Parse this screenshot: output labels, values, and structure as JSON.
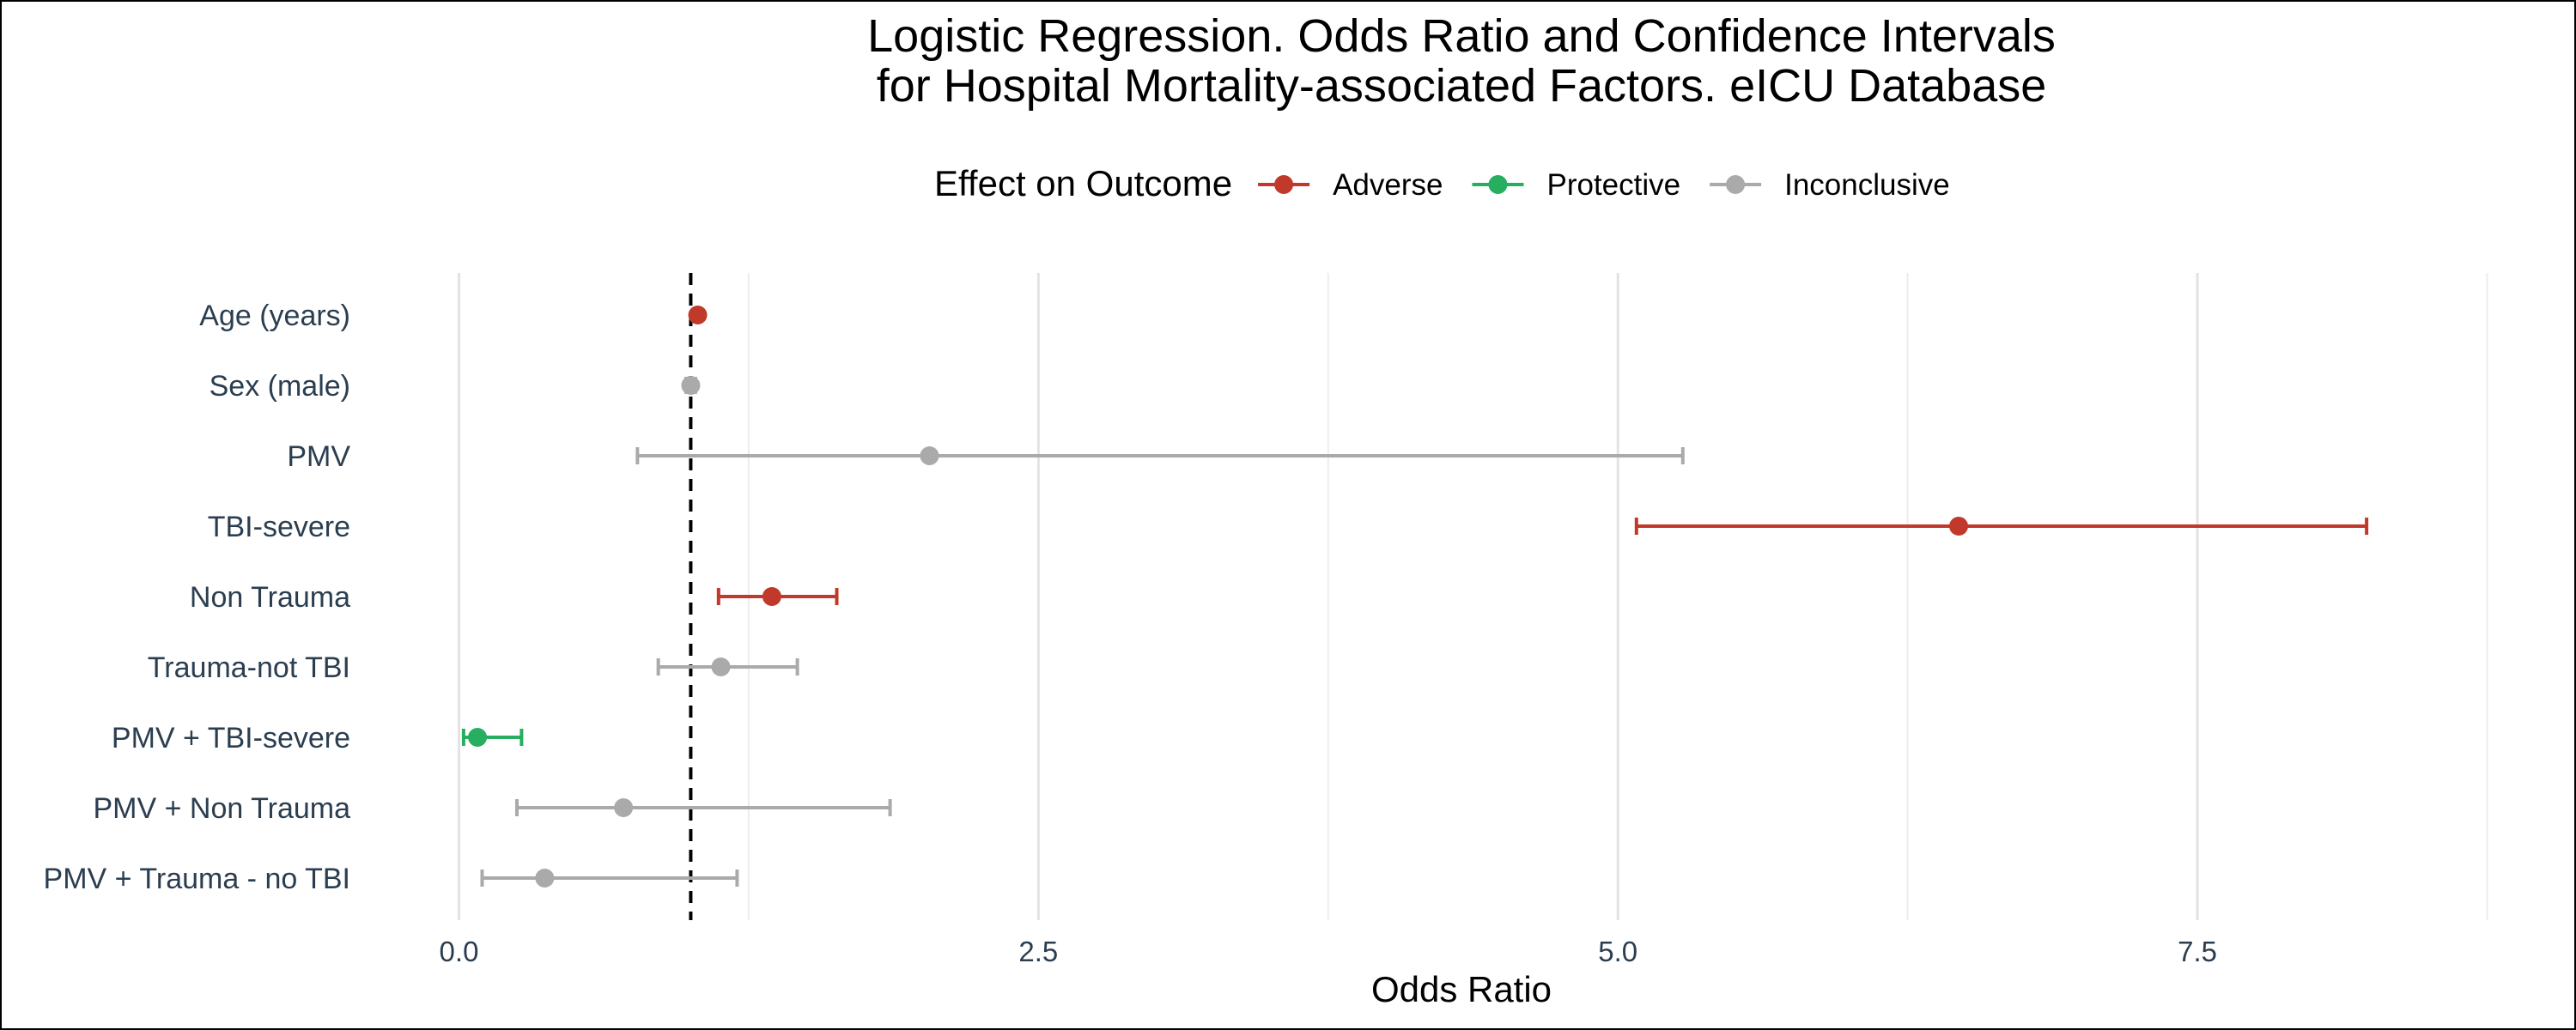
{
  "chart_data": {
    "type": "scatter",
    "title_lines": [
      "Logistic Regression. Odds Ratio and Confidence Intervals",
      "for Hospital Mortality-associated Factors. eICU Database"
    ],
    "xlabel": "Odds Ratio",
    "ylabel": "",
    "xlim": [
      -0.25,
      8.9
    ],
    "x_ticks": [
      0.0,
      2.5,
      5.0,
      7.5
    ],
    "x_tick_labels": [
      "0.0",
      "2.5",
      "5.0",
      "7.5"
    ],
    "minor_gridlines_x": [
      1.25,
      3.75,
      6.25,
      8.75
    ],
    "reference_line": 1.0,
    "grid": true,
    "legend": {
      "position": "top",
      "title": "Effect on Outcome",
      "entries": [
        {
          "name": "Adverse",
          "color": "#c0392b"
        },
        {
          "name": "Protective",
          "color": "#27ae60"
        },
        {
          "name": "Inconclusive",
          "color": "#aaaaaa"
        }
      ]
    },
    "points": [
      {
        "label": "Age (years)",
        "estimate": 1.03,
        "lower": 1.02,
        "upper": 1.04,
        "effect": "Adverse"
      },
      {
        "label": "Sex (male)",
        "estimate": 1.0,
        "lower": 0.98,
        "upper": 1.02,
        "effect": "Inconclusive"
      },
      {
        "label": "PMV",
        "estimate": 2.03,
        "lower": 0.77,
        "upper": 5.28,
        "effect": "Inconclusive"
      },
      {
        "label": "TBI-severe",
        "estimate": 6.47,
        "lower": 5.08,
        "upper": 8.23,
        "effect": "Adverse"
      },
      {
        "label": "Non Trauma",
        "estimate": 1.35,
        "lower": 1.12,
        "upper": 1.63,
        "effect": "Adverse"
      },
      {
        "label": "Trauma-not TBI",
        "estimate": 1.13,
        "lower": 0.86,
        "upper": 1.46,
        "effect": "Inconclusive"
      },
      {
        "label": "PMV + TBI-severe",
        "estimate": 0.08,
        "lower": 0.02,
        "upper": 0.27,
        "effect": "Protective"
      },
      {
        "label": "PMV + Non Trauma",
        "estimate": 0.71,
        "lower": 0.25,
        "upper": 1.86,
        "effect": "Inconclusive"
      },
      {
        "label": "PMV + Trauma - no TBI",
        "estimate": 0.37,
        "lower": 0.1,
        "upper": 1.2,
        "effect": "Inconclusive"
      }
    ]
  }
}
